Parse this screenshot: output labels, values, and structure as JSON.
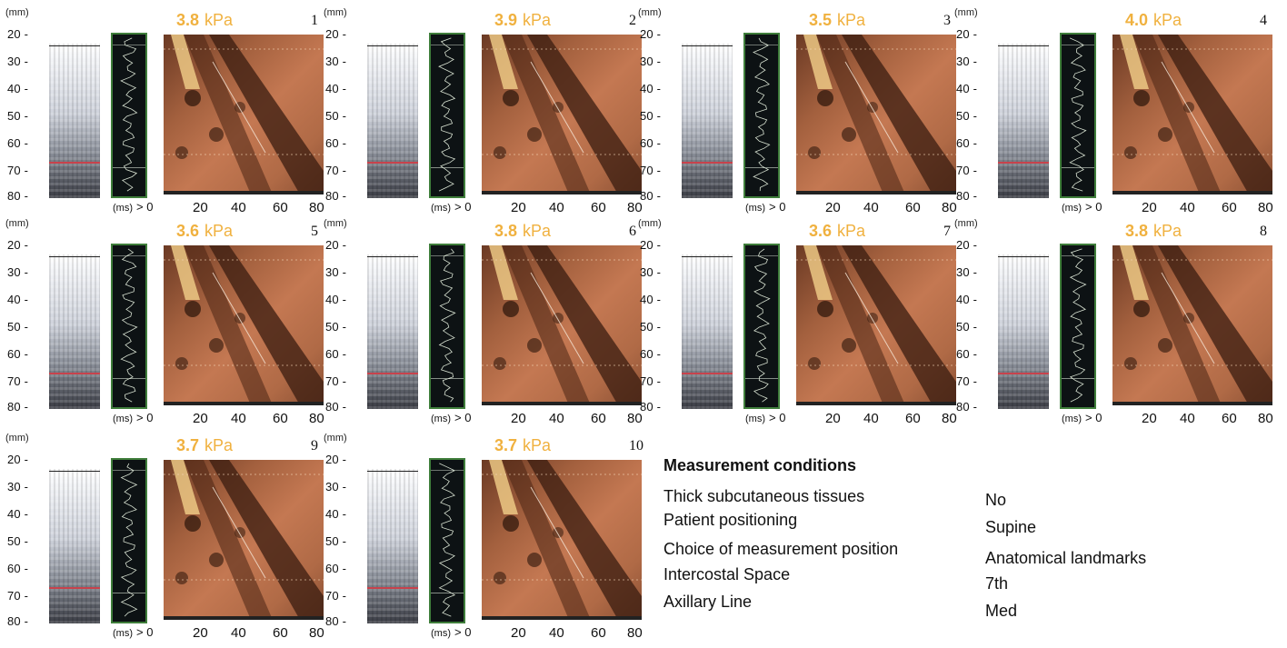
{
  "axis": {
    "depth_unit": "(mm)",
    "depth_ticks": [
      "20 -",
      "30 -",
      "40 -",
      "50 -",
      "60 -",
      "70 -",
      "80 -"
    ],
    "time_unit": "(ms)",
    "time_zero": "> 0",
    "time_ticks": [
      "20",
      "40",
      "60",
      "80"
    ]
  },
  "panels": [
    {
      "number": "1",
      "value": "3.8",
      "unit": "kPa"
    },
    {
      "number": "2",
      "value": "3.9",
      "unit": "kPa"
    },
    {
      "number": "3",
      "value": "3.5",
      "unit": "kPa"
    },
    {
      "number": "4",
      "value": "4.0",
      "unit": "kPa"
    },
    {
      "number": "5",
      "value": "3.6",
      "unit": "kPa"
    },
    {
      "number": "6",
      "value": "3.8",
      "unit": "kPa"
    },
    {
      "number": "7",
      "value": "3.6",
      "unit": "kPa"
    },
    {
      "number": "8",
      "value": "3.8",
      "unit": "kPa"
    },
    {
      "number": "9",
      "value": "3.7",
      "unit": "kPa"
    },
    {
      "number": "10",
      "value": "3.7",
      "unit": "kPa"
    }
  ],
  "conditions": {
    "title": "Measurement conditions",
    "rows": [
      {
        "label": "Thick subcutaneous tissues",
        "value": "No"
      },
      {
        "label": "Patient positioning",
        "value": "Supine"
      },
      {
        "label": "Choice of measurement position",
        "value": "Anatomical landmarks"
      },
      {
        "label": "Intercostal Space",
        "value": "7th"
      },
      {
        "label": "Axillary Line",
        "value": "Med"
      }
    ]
  },
  "colors": {
    "kpa_text": "#f0b13f",
    "mmode_border": "#3f7e3b",
    "roi_line": "#c8424c"
  }
}
